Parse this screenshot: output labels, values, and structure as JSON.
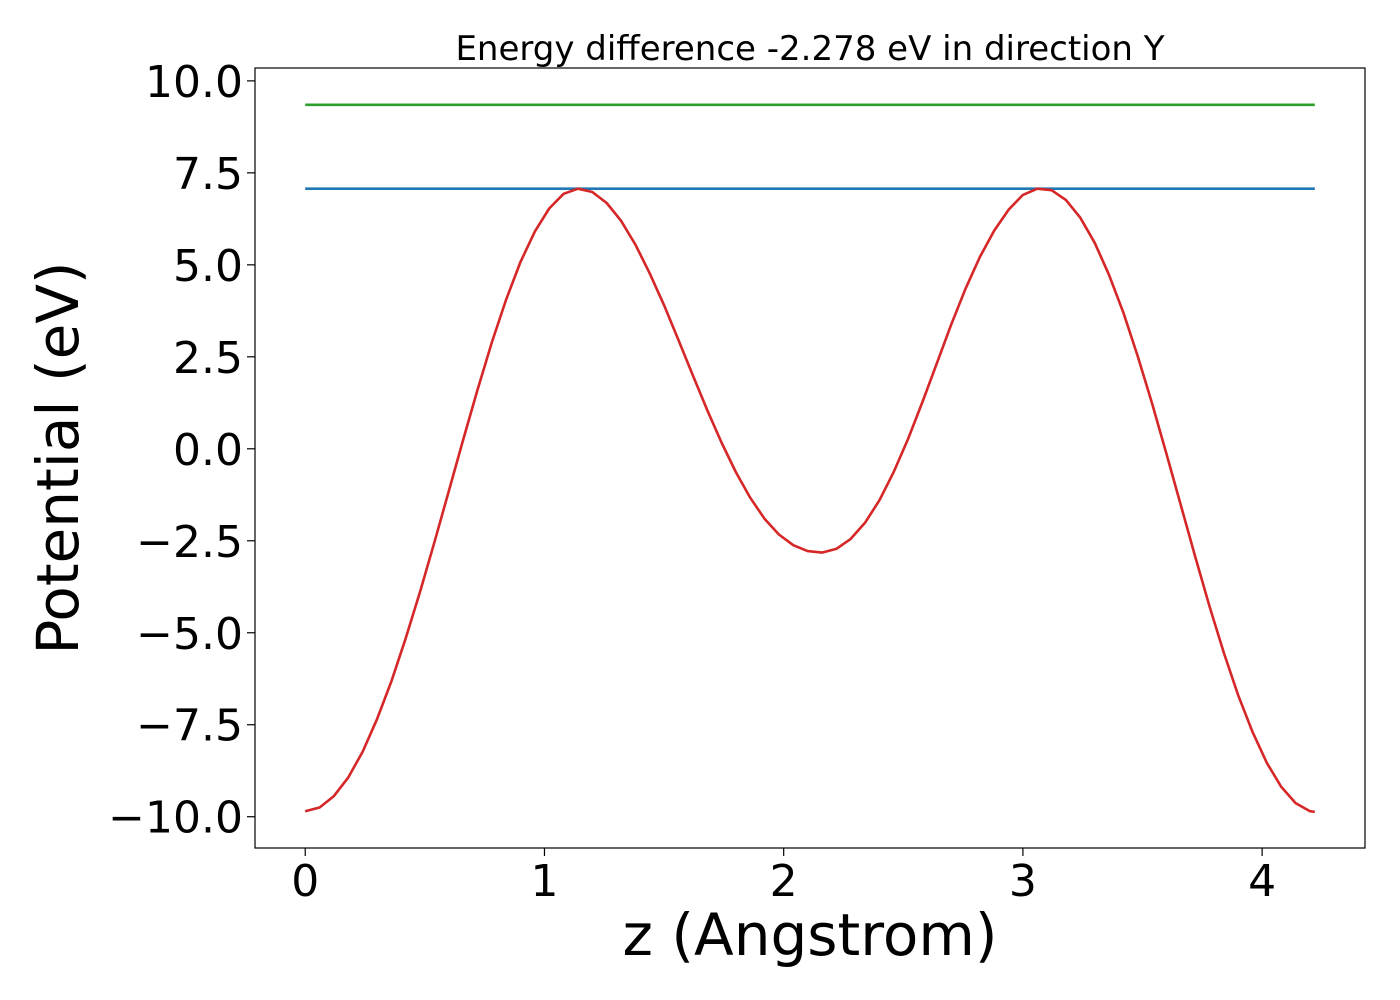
{
  "chart_data": {
    "type": "line",
    "title": "Energy difference -2.278 eV in direction Y",
    "xlabel": "z (Angstrom)",
    "ylabel": "Potential (eV)",
    "xlim": [
      -0.21,
      4.43
    ],
    "ylim": [
      -10.85,
      10.35
    ],
    "xticks": [
      0,
      1,
      2,
      3,
      4
    ],
    "xtick_labels": [
      "0",
      "1",
      "2",
      "3",
      "4"
    ],
    "yticks": [
      -10.0,
      -7.5,
      -5.0,
      -2.5,
      0.0,
      2.5,
      5.0,
      7.5,
      10.0
    ],
    "ytick_labels": [
      "−10.0",
      "−7.5",
      "−5.0",
      "−2.5",
      "0.0",
      "2.5",
      "5.0",
      "7.5",
      "10.0"
    ],
    "grid": false,
    "series": [
      {
        "color": "#2ca02c",
        "x": [
          0.0,
          4.22
        ],
        "y": [
          9.35,
          9.35
        ]
      },
      {
        "color": "#1f77b4",
        "x": [
          0.0,
          4.22
        ],
        "y": [
          7.07,
          7.07
        ]
      },
      {
        "color": "#d62728",
        "x": [
          0.0,
          0.06,
          0.12,
          0.18,
          0.24,
          0.3,
          0.36,
          0.42,
          0.48,
          0.54,
          0.6,
          0.66,
          0.72,
          0.78,
          0.84,
          0.9,
          0.96,
          1.02,
          1.08,
          1.14,
          1.2,
          1.26,
          1.32,
          1.38,
          1.44,
          1.5,
          1.56,
          1.62,
          1.68,
          1.74,
          1.8,
          1.86,
          1.92,
          1.98,
          2.04,
          2.1,
          2.16,
          2.22,
          2.28,
          2.34,
          2.4,
          2.46,
          2.52,
          2.58,
          2.64,
          2.7,
          2.76,
          2.82,
          2.88,
          2.94,
          3.0,
          3.06,
          3.12,
          3.18,
          3.24,
          3.3,
          3.36,
          3.42,
          3.48,
          3.54,
          3.6,
          3.66,
          3.72,
          3.78,
          3.84,
          3.9,
          3.96,
          4.02,
          4.08,
          4.14,
          4.2,
          4.22
        ],
        "y": [
          -9.85,
          -9.75,
          -9.44,
          -8.93,
          -8.23,
          -7.35,
          -6.32,
          -5.15,
          -3.88,
          -2.54,
          -1.15,
          0.24,
          1.6,
          2.89,
          4.06,
          5.08,
          5.91,
          6.53,
          6.93,
          7.07,
          6.98,
          6.68,
          6.2,
          5.55,
          4.77,
          3.9,
          2.96,
          2.0,
          1.06,
          0.17,
          -0.63,
          -1.33,
          -1.9,
          -2.33,
          -2.62,
          -2.78,
          -2.82,
          -2.72,
          -2.45,
          -2.01,
          -1.4,
          -0.63,
          0.27,
          1.27,
          2.32,
          3.37,
          4.35,
          5.21,
          5.93,
          6.5,
          6.9,
          7.07,
          7.03,
          6.76,
          6.28,
          5.6,
          4.73,
          3.7,
          2.52,
          1.23,
          -0.13,
          -1.53,
          -2.93,
          -4.28,
          -5.55,
          -6.7,
          -7.7,
          -8.54,
          -9.19,
          -9.63,
          -9.85,
          -9.87
        ]
      }
    ]
  }
}
